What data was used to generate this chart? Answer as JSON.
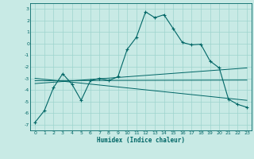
{
  "xlabel": "Humidex (Indice chaleur)",
  "background_color": "#c8eae5",
  "line_color": "#006666",
  "grid_color": "#9dd4ce",
  "xlim": [
    -0.5,
    23.5
  ],
  "ylim": [
    -7.5,
    3.5
  ],
  "xticks": [
    0,
    1,
    2,
    3,
    4,
    5,
    6,
    7,
    8,
    9,
    10,
    11,
    12,
    13,
    14,
    15,
    16,
    17,
    18,
    19,
    20,
    21,
    22,
    23
  ],
  "yticks": [
    -7,
    -6,
    -5,
    -4,
    -3,
    -2,
    -1,
    0,
    1,
    2,
    3
  ],
  "main_curve_x": [
    0,
    1,
    2,
    3,
    4,
    5,
    6,
    7,
    8,
    9,
    10,
    11,
    12,
    13,
    14,
    15,
    16,
    17,
    18,
    19,
    20,
    21,
    22,
    23
  ],
  "main_curve_y": [
    -6.8,
    -5.8,
    -3.8,
    -2.6,
    -3.5,
    -4.9,
    -3.2,
    -3.0,
    -3.2,
    -2.85,
    -0.5,
    0.55,
    2.75,
    2.25,
    2.5,
    1.3,
    0.1,
    -0.1,
    -0.05,
    -1.5,
    -2.1,
    -4.8,
    -5.25,
    -5.5
  ],
  "regression_lines": [
    {
      "x": [
        0,
        23
      ],
      "y": [
        -3.2,
        -3.15
      ]
    },
    {
      "x": [
        0,
        23
      ],
      "y": [
        -3.45,
        -2.1
      ]
    },
    {
      "x": [
        0,
        23
      ],
      "y": [
        -3.0,
        -4.9
      ]
    }
  ]
}
